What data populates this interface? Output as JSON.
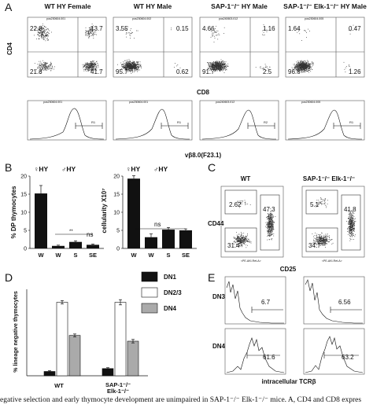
{
  "panel_letters": [
    "A",
    "B",
    "C",
    "D",
    "E"
  ],
  "panel_a": {
    "column_titles": [
      "WT HY Female",
      "WT HY Male",
      "SAP-1⁻/⁻ HY Male",
      "SAP-1⁻/⁻ Elk-1⁻/⁻ HY Male"
    ],
    "y_label": "CD4",
    "x_label": "CD8",
    "hist_x_label": "vβ8.0(F23.1)",
    "file_ids": [
      "pos230604.001",
      "pos230604.002",
      "pos240603.012",
      "pos230604.005"
    ],
    "hist_file_ids": [
      "pos230604.001",
      "pos230604.001",
      "pos240603.012",
      "pos230604.005"
    ],
    "hist_gates": [
      "R1",
      "R1",
      "R2",
      "R1"
    ],
    "quadrants": [
      {
        "ul": "22.8",
        "ur": "13.7",
        "ll": "21.8",
        "lr": "41.7"
      },
      {
        "ul": "3.55",
        "ur": "0.15",
        "ll": "95.7",
        "lr": "0.62"
      },
      {
        "ul": "4.66",
        "ur": "1.16",
        "ll": "91.7",
        "lr": "2.5"
      },
      {
        "ul": "1.64",
        "ur": "0.47",
        "ll": "96.6",
        "lr": "1.26"
      }
    ]
  },
  "panel_b": {
    "left": {
      "ylabel": "% DP thymocytes",
      "legend": [
        "♀HY",
        "♂HY"
      ],
      "sig": [
        "**",
        "ns"
      ],
      "chart_data": {
        "type": "bar",
        "categories": [
          "W",
          "W",
          "S",
          "SE"
        ],
        "values": [
          15.2,
          0.7,
          1.8,
          1.0
        ],
        "errors": [
          2.2,
          0.2,
          0.3,
          0.2
        ],
        "ylim": [
          0,
          20
        ],
        "yticks": [
          "0",
          "5",
          "10",
          "15",
          "20"
        ],
        "ylabel": "% DP thymocytes"
      }
    },
    "right": {
      "ylabel": "cellularity X10⁷",
      "legend": [
        "♀HY",
        "♂HY"
      ],
      "sig": [
        "ns"
      ],
      "chart_data": {
        "type": "bar",
        "categories": [
          "W",
          "W",
          "S",
          "SE"
        ],
        "values": [
          19.3,
          3.1,
          5.2,
          5.0
        ],
        "errors": [
          0.8,
          0.9,
          0.6,
          0.4
        ],
        "ylim": [
          0,
          20
        ],
        "yticks": [
          "0",
          "5",
          "10",
          "15",
          "20"
        ],
        "ylabel": "cellularity X10⁷"
      }
    }
  },
  "panel_c": {
    "column_titles": [
      "WT",
      "SAP-1⁻/⁻ Elk-1⁻/⁻"
    ],
    "y_label": "CD44",
    "x_label": "CD25",
    "tick_caption": "<PE-AKI-Ret-A>",
    "values": [
      {
        "ul": "2.62",
        "ur": "47.3",
        "ll": "31.4"
      },
      {
        "ul": "5.1",
        "ur": "41.8",
        "ll": "34.7"
      }
    ]
  },
  "panel_d": {
    "chart_data": {
      "type": "bar",
      "categories": [
        "WT",
        "SAP-1⁻/⁻ Elk-1⁻/⁻"
      ],
      "series": [
        {
          "name": "DN1",
          "values": [
            3,
            5
          ],
          "errors": [
            0.5,
            0.6
          ],
          "color": "#111111"
        },
        {
          "name": "DN2/3",
          "values": [
            51,
            51
          ],
          "errors": [
            1.2,
            1.8
          ],
          "color": "#ffffff"
        },
        {
          "name": "DN4",
          "values": [
            28,
            24
          ],
          "errors": [
            1.0,
            1.2
          ],
          "color": "#aaaaaa"
        }
      ],
      "ylim": [
        0,
        60
      ],
      "ylabel": "% lineage negative thymocytes"
    },
    "x_labels": [
      "WT",
      "SAP-1⁻/⁻",
      "Elk-1⁻/⁻"
    ]
  },
  "panel_e": {
    "row_labels": [
      "DN3",
      "DN4"
    ],
    "x_label": "intracellular TCRβ",
    "values": [
      [
        "6.7",
        "6.56"
      ],
      [
        "61.6",
        "63.2"
      ]
    ]
  },
  "caption": "egative selection and early thymocyte development are unimpaired in SAP-1⁻/⁻ Elk-1⁻/⁻ mice. A, CD4 and CD8 expres"
}
